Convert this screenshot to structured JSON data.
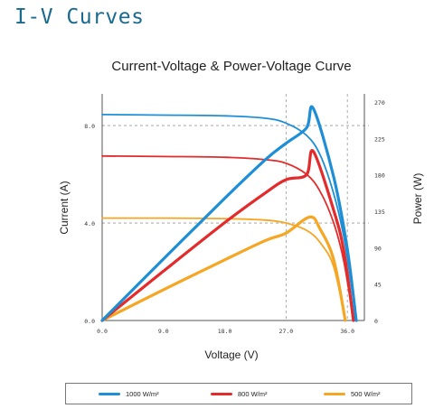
{
  "page_title": "I-V Curves",
  "chart_data": {
    "type": "line",
    "title": "Current-Voltage & Power-Voltage Curve",
    "xlabel": "Voltage (V)",
    "ylabel": "Current (A)",
    "y2label": "Power (W)",
    "xlim": [
      0,
      38.5
    ],
    "ylim": [
      0,
      9.3
    ],
    "y2lim": [
      0,
      280
    ],
    "xticks": [
      "0.0",
      "9.0",
      "18.0",
      "27.0",
      "36.0"
    ],
    "yticks": [
      "0.0",
      "4.0",
      "8.0"
    ],
    "y2ticks": [
      "0",
      "45",
      "90",
      "135",
      "180",
      "225",
      "270"
    ],
    "grid": "dashed at 27 V and 36 V, 4 A and 8 A",
    "legend_position": "bottom",
    "series": [
      {
        "name": "1000 W/m²",
        "color": "#1e8fd6",
        "iv": {
          "isc": 8.45,
          "voc": 37.3,
          "points": [
            [
              0,
              8.45
            ],
            [
              9,
              8.43
            ],
            [
              18,
              8.4
            ],
            [
              24,
              8.3
            ],
            [
              27,
              8.1
            ],
            [
              30,
              7.6
            ],
            [
              32,
              6.8
            ],
            [
              34,
              5.2
            ],
            [
              35.5,
              3.4
            ],
            [
              36.5,
              1.6
            ],
            [
              37.3,
              0
            ]
          ]
        },
        "pv": {
          "pmax": 262,
          "vmp": 31,
          "points": [
            [
              0,
              0
            ],
            [
              9,
              76
            ],
            [
              18,
              151
            ],
            [
              24,
              199
            ],
            [
              27,
              219
            ],
            [
              30,
              238
            ],
            [
              31,
              262
            ],
            [
              34,
              177
            ],
            [
              36,
              88
            ],
            [
              37.3,
              0
            ]
          ]
        }
      },
      {
        "name": "800 W/m²",
        "color": "#e32b2b",
        "iv": {
          "isc": 6.75,
          "voc": 36.9,
          "points": [
            [
              0,
              6.75
            ],
            [
              9,
              6.73
            ],
            [
              18,
              6.7
            ],
            [
              24,
              6.6
            ],
            [
              27,
              6.45
            ],
            [
              30,
              6.0
            ],
            [
              32,
              5.3
            ],
            [
              34,
              4.0
            ],
            [
              35.5,
              2.4
            ],
            [
              36.9,
              0
            ]
          ]
        },
        "pv": {
          "pmax": 209,
          "vmp": 31,
          "points": [
            [
              0,
              0
            ],
            [
              9,
              61
            ],
            [
              18,
              121
            ],
            [
              24,
              158
            ],
            [
              27,
              174
            ],
            [
              30,
              180
            ],
            [
              31,
              209
            ],
            [
              34,
              136
            ],
            [
              35.5,
              85
            ],
            [
              36.9,
              0
            ]
          ]
        }
      },
      {
        "name": "500 W/m²",
        "color": "#f5a623",
        "iv": {
          "isc": 4.2,
          "voc": 35.7,
          "points": [
            [
              0,
              4.2
            ],
            [
              9,
              4.2
            ],
            [
              18,
              4.18
            ],
            [
              24,
              4.12
            ],
            [
              27,
              4.0
            ],
            [
              30,
              3.7
            ],
            [
              32,
              3.2
            ],
            [
              34,
              2.2
            ],
            [
              35.7,
              0
            ]
          ]
        },
        "pv": {
          "pmax": 128,
          "vmp": 30.5,
          "points": [
            [
              0,
              0
            ],
            [
              9,
              38
            ],
            [
              18,
              75
            ],
            [
              24,
              99
            ],
            [
              27,
              108
            ],
            [
              30.5,
              128
            ],
            [
              32,
              113
            ],
            [
              34,
              75
            ],
            [
              35.7,
              0
            ]
          ]
        }
      }
    ]
  }
}
